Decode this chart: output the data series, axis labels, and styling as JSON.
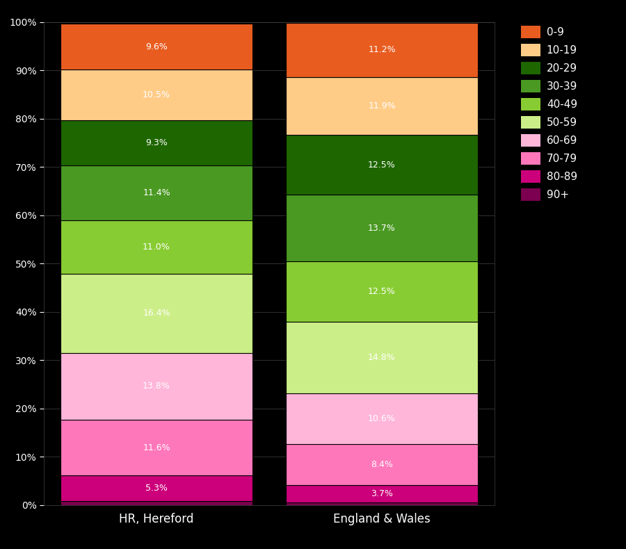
{
  "categories": [
    "HR, Hereford",
    "England & Wales"
  ],
  "age_groups_bottom_to_top": [
    "90+",
    "80-89",
    "70-79",
    "60-69",
    "50-59",
    "40-49",
    "30-39",
    "20-29",
    "10-19",
    "0-9"
  ],
  "colors_bottom_to_top": [
    "#7B0050",
    "#CC007A",
    "#FF77BB",
    "#FFB6D9",
    "#CCEE88",
    "#88CC33",
    "#4A9922",
    "#1E6600",
    "#FFCC88",
    "#E85C20"
  ],
  "hereford_bottom_to_top": [
    0.8,
    5.3,
    11.6,
    13.8,
    16.4,
    11.0,
    11.4,
    9.3,
    10.5,
    9.6
  ],
  "england_wales_bottom_to_top": [
    0.5,
    3.7,
    8.4,
    10.6,
    14.8,
    12.5,
    13.7,
    12.5,
    11.9,
    11.2
  ],
  "legend_labels": [
    "0-9",
    "10-19",
    "20-29",
    "30-39",
    "40-49",
    "50-59",
    "60-69",
    "70-79",
    "80-89",
    "90+"
  ],
  "legend_colors": [
    "#E85C20",
    "#FFCC88",
    "#1E6600",
    "#4A9922",
    "#88CC33",
    "#CCEE88",
    "#FFB6D9",
    "#FF77BB",
    "#CC007A",
    "#7B0050"
  ],
  "background_color": "#000000",
  "text_color": "#ffffff",
  "label_min_pct": 1.5,
  "yticks": [
    0,
    10,
    20,
    30,
    40,
    50,
    60,
    70,
    80,
    90,
    100
  ]
}
